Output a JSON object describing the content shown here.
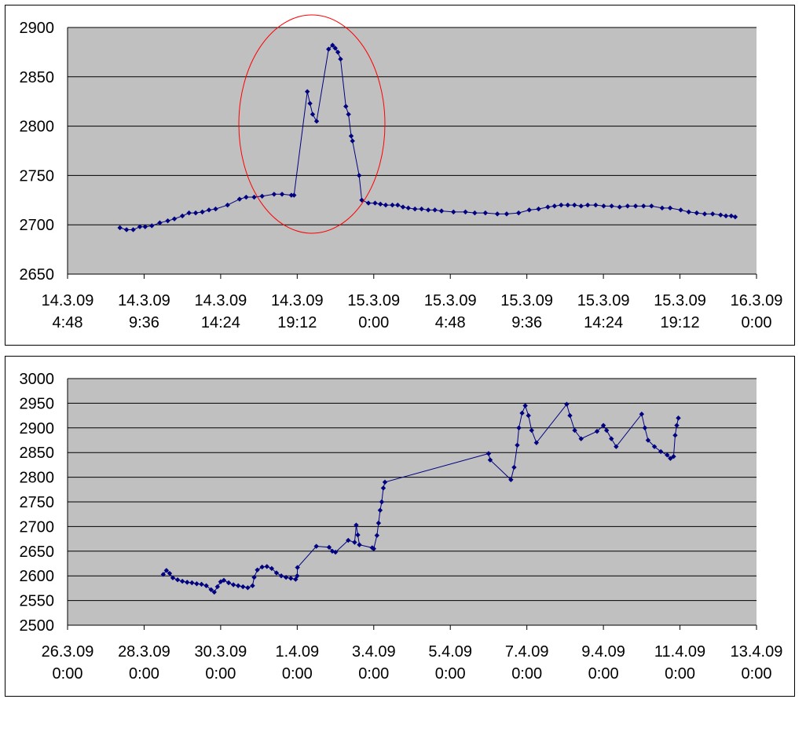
{
  "colors": {
    "plot_background": "#c0c0c0",
    "gridline": "#000000",
    "series_line": "#000080",
    "marker": "#000080",
    "annotation": "#ff0000"
  },
  "chart_data": [
    {
      "type": "line",
      "title": "",
      "xlabel": "",
      "ylabel": "",
      "y_range": [
        2650,
        2900
      ],
      "y_ticks": [
        "2900",
        "2850",
        "2800",
        "2750",
        "2700",
        "2650"
      ],
      "x_range": [
        "14.3.09 4:48",
        "16.3.09 0:00"
      ],
      "x_ticks": [
        {
          "date": "14.3.09",
          "time": "4:48"
        },
        {
          "date": "14.3.09",
          "time": "9:36"
        },
        {
          "date": "14.3.09",
          "time": "14:24"
        },
        {
          "date": "14.3.09",
          "time": "19:12"
        },
        {
          "date": "15.3.09",
          "time": "0:00"
        },
        {
          "date": "15.3.09",
          "time": "4:48"
        },
        {
          "date": "15.3.09",
          "time": "9:36"
        },
        {
          "date": "15.3.09",
          "time": "14:24"
        },
        {
          "date": "15.3.09",
          "time": "19:12"
        },
        {
          "date": "16.3.09",
          "time": "0:00"
        }
      ],
      "grid": "horizontal",
      "legend": "none",
      "annotation": "red ellipse around the peak between 14.3.09 16:30 and 14.3.09 22:00",
      "series": [
        {
          "markers": "diamond",
          "points": [
            [
              "14.3.09 8:05",
              2697
            ],
            [
              "14.3.09 8:30",
              2695
            ],
            [
              "14.3.09 8:55",
              2695
            ],
            [
              "14.3.09 9:20",
              2698
            ],
            [
              "14.3.09 9:40",
              2698
            ],
            [
              "14.3.09 10:05",
              2699
            ],
            [
              "14.3.09 10:35",
              2702
            ],
            [
              "14.3.09 11:05",
              2704
            ],
            [
              "14.3.09 11:30",
              2706
            ],
            [
              "14.3.09 12:00",
              2709
            ],
            [
              "14.3.09 12:25",
              2712
            ],
            [
              "14.3.09 12:50",
              2712
            ],
            [
              "14.3.09 13:15",
              2713
            ],
            [
              "14.3.09 13:40",
              2715
            ],
            [
              "14.3.09 14:05",
              2716
            ],
            [
              "14.3.09 14:50",
              2720
            ],
            [
              "14.3.09 15:35",
              2726
            ],
            [
              "14.3.09 16:00",
              2728
            ],
            [
              "14.3.09 16:30",
              2728
            ],
            [
              "14.3.09 17:00",
              2729
            ],
            [
              "14.3.09 17:45",
              2731
            ],
            [
              "14.3.09 18:15",
              2731
            ],
            [
              "14.3.09 18:50",
              2730
            ],
            [
              "14.3.09 19:00",
              2730
            ],
            [
              "14.3.09 19:50",
              2835
            ],
            [
              "14.3.09 20:00",
              2823
            ],
            [
              "14.3.09 20:10",
              2812
            ],
            [
              "14.3.09 20:25",
              2805
            ],
            [
              "14.3.09 21:10",
              2878
            ],
            [
              "14.3.09 21:25",
              2882
            ],
            [
              "14.3.09 21:35",
              2879
            ],
            [
              "14.3.09 21:45",
              2875
            ],
            [
              "14.3.09 21:55",
              2868
            ],
            [
              "14.3.09 22:15",
              2820
            ],
            [
              "14.3.09 22:25",
              2812
            ],
            [
              "14.3.09 22:35",
              2790
            ],
            [
              "14.3.09 22:40",
              2785
            ],
            [
              "14.3.09 23:05",
              2750
            ],
            [
              "14.3.09 23:15",
              2725
            ],
            [
              "14.3.09 23:40",
              2722
            ],
            [
              "15.3.09 0:05",
              2722
            ],
            [
              "15.3.09 0:25",
              2721
            ],
            [
              "15.3.09 0:45",
              2720
            ],
            [
              "15.3.09 1:10",
              2720
            ],
            [
              "15.3.09 1:30",
              2720
            ],
            [
              "15.3.09 1:50",
              2718
            ],
            [
              "15.3.09 2:10",
              2717
            ],
            [
              "15.3.09 2:35",
              2716
            ],
            [
              "15.3.09 3:00",
              2716
            ],
            [
              "15.3.09 3:25",
              2715
            ],
            [
              "15.3.09 3:50",
              2715
            ],
            [
              "15.3.09 4:15",
              2714
            ],
            [
              "15.3.09 5:00",
              2713
            ],
            [
              "15.3.09 5:45",
              2713
            ],
            [
              "15.3.09 6:20",
              2712
            ],
            [
              "15.3.09 7:00",
              2712
            ],
            [
              "15.3.09 7:45",
              2711
            ],
            [
              "15.3.09 8:20",
              2711
            ],
            [
              "15.3.09 9:05",
              2712
            ],
            [
              "15.3.09 9:45",
              2715
            ],
            [
              "15.3.09 10:20",
              2716
            ],
            [
              "15.3.09 10:55",
              2718
            ],
            [
              "15.3.09 11:20",
              2719
            ],
            [
              "15.3.09 11:45",
              2720
            ],
            [
              "15.3.09 12:10",
              2720
            ],
            [
              "15.3.09 12:35",
              2720
            ],
            [
              "15.3.09 13:00",
              2719
            ],
            [
              "15.3.09 13:25",
              2720
            ],
            [
              "15.3.09 13:55",
              2720
            ],
            [
              "15.3.09 14:25",
              2719
            ],
            [
              "15.3.09 14:55",
              2719
            ],
            [
              "15.3.09 15:25",
              2718
            ],
            [
              "15.3.09 15:55",
              2719
            ],
            [
              "15.3.09 16:25",
              2719
            ],
            [
              "15.3.09 16:55",
              2719
            ],
            [
              "15.3.09 17:25",
              2719
            ],
            [
              "15.3.09 18:05",
              2717
            ],
            [
              "15.3.09 18:35",
              2717
            ],
            [
              "15.3.09 19:15",
              2715
            ],
            [
              "15.3.09 19:45",
              2713
            ],
            [
              "15.3.09 20:15",
              2712
            ],
            [
              "15.3.09 20:45",
              2711
            ],
            [
              "15.3.09 21:15",
              2711
            ],
            [
              "15.3.09 21:45",
              2710
            ],
            [
              "15.3.09 22:05",
              2709
            ],
            [
              "15.3.09 22:25",
              2709
            ],
            [
              "15.3.09 22:40",
              2708
            ]
          ]
        }
      ]
    },
    {
      "type": "line",
      "title": "",
      "xlabel": "",
      "ylabel": "",
      "y_range": [
        2500,
        3000
      ],
      "y_ticks": [
        "3000",
        "2950",
        "2900",
        "2850",
        "2800",
        "2750",
        "2700",
        "2650",
        "2600",
        "2550",
        "2500"
      ],
      "x_range": [
        "26.3.09 0:00",
        "13.4.09 0:00"
      ],
      "x_ticks": [
        {
          "date": "26.3.09",
          "time": "0:00"
        },
        {
          "date": "28.3.09",
          "time": "0:00"
        },
        {
          "date": "30.3.09",
          "time": "0:00"
        },
        {
          "date": "1.4.09",
          "time": "0:00"
        },
        {
          "date": "3.4.09",
          "time": "0:00"
        },
        {
          "date": "5.4.09",
          "time": "0:00"
        },
        {
          "date": "7.4.09",
          "time": "0:00"
        },
        {
          "date": "9.4.09",
          "time": "0:00"
        },
        {
          "date": "11.4.09",
          "time": "0:00"
        },
        {
          "date": "13.4.09",
          "time": "0:00"
        }
      ],
      "grid": "horizontal",
      "legend": "none",
      "series": [
        {
          "markers": "diamond",
          "points": [
            [
              "28.3.09 12:00",
              2603
            ],
            [
              "28.3.09 14:00",
              2611
            ],
            [
              "28.3.09 16:00",
              2605
            ],
            [
              "28.3.09 18:00",
              2596
            ],
            [
              "28.3.09 21:00",
              2592
            ],
            [
              "29.3.09 0:00",
              2589
            ],
            [
              "29.3.09 3:00",
              2587
            ],
            [
              "29.3.09 6:00",
              2586
            ],
            [
              "29.3.09 9:00",
              2584
            ],
            [
              "29.3.09 12:00",
              2583
            ],
            [
              "29.3.09 15:00",
              2580
            ],
            [
              "29.3.09 18:00",
              2572
            ],
            [
              "29.3.09 20:00",
              2567
            ],
            [
              "29.3.09 22:00",
              2578
            ],
            [
              "30.3.09 0:00",
              2588
            ],
            [
              "30.3.09 2:00",
              2591
            ],
            [
              "30.3.09 5:00",
              2586
            ],
            [
              "30.3.09 8:00",
              2582
            ],
            [
              "30.3.09 11:00",
              2580
            ],
            [
              "30.3.09 14:00",
              2578
            ],
            [
              "30.3.09 17:00",
              2576
            ],
            [
              "30.3.09 20:00",
              2580
            ],
            [
              "30.3.09 21:00",
              2597
            ],
            [
              "30.3.09 23:00",
              2612
            ],
            [
              "31.3.09 2:00",
              2618
            ],
            [
              "31.3.09 5:00",
              2619
            ],
            [
              "31.3.09 8:00",
              2615
            ],
            [
              "31.3.09 11:00",
              2606
            ],
            [
              "31.3.09 14:00",
              2600
            ],
            [
              "31.3.09 17:00",
              2597
            ],
            [
              "31.3.09 20:00",
              2595
            ],
            [
              "31.3.09 23:00",
              2593
            ],
            [
              "1.4.09 0:00",
              2600
            ],
            [
              "1.4.09 0:10",
              2617
            ],
            [
              "1.4.09 12:00",
              2660
            ],
            [
              "1.4.09 20:00",
              2658
            ],
            [
              "1.4.09 22:00",
              2650
            ],
            [
              "2.4.09 0:00",
              2648
            ],
            [
              "2.4.09 8:00",
              2672
            ],
            [
              "2.4.09 12:00",
              2668
            ],
            [
              "2.4.09 13:00",
              2703
            ],
            [
              "2.4.09 14:00",
              2683
            ],
            [
              "2.4.09 15:00",
              2663
            ],
            [
              "2.4.09 23:00",
              2657
            ],
            [
              "3.4.09 0:00",
              2655
            ],
            [
              "3.4.09 2:00",
              2682
            ],
            [
              "3.4.09 3:00",
              2707
            ],
            [
              "3.4.09 4:00",
              2733
            ],
            [
              "3.4.09 5:00",
              2750
            ],
            [
              "3.4.09 6:00",
              2778
            ],
            [
              "3.4.09 7:00",
              2790
            ],
            [
              "6.4.09 0:00",
              2848
            ],
            [
              "6.4.09 1:00",
              2835
            ],
            [
              "6.4.09 14:00",
              2795
            ],
            [
              "6.4.09 16:00",
              2820
            ],
            [
              "6.4.09 18:00",
              2865
            ],
            [
              "6.4.09 19:00",
              2900
            ],
            [
              "6.4.09 21:00",
              2930
            ],
            [
              "6.4.09 23:00",
              2945
            ],
            [
              "7.4.09 1:00",
              2925
            ],
            [
              "7.4.09 3:00",
              2895
            ],
            [
              "7.4.09 6:00",
              2870
            ],
            [
              "8.4.09 1:00",
              2948
            ],
            [
              "8.4.09 3:00",
              2925
            ],
            [
              "8.4.09 6:00",
              2895
            ],
            [
              "8.4.09 10:00",
              2878
            ],
            [
              "8.4.09 20:00",
              2893
            ],
            [
              "9.4.09 0:00",
              2905
            ],
            [
              "9.4.09 2:00",
              2895
            ],
            [
              "9.4.09 5:00",
              2878
            ],
            [
              "9.4.09 8:00",
              2862
            ],
            [
              "10.4.09 0:00",
              2928
            ],
            [
              "10.4.09 2:00",
              2900
            ],
            [
              "10.4.09 4:00",
              2875
            ],
            [
              "10.4.09 8:00",
              2862
            ],
            [
              "10.4.09 12:00",
              2852
            ],
            [
              "10.4.09 16:00",
              2845
            ],
            [
              "10.4.09 18:00",
              2838
            ],
            [
              "10.4.09 20:00",
              2842
            ],
            [
              "10.4.09 21:00",
              2885
            ],
            [
              "10.4.09 22:00",
              2905
            ],
            [
              "10.4.09 23:00",
              2920
            ]
          ]
        }
      ]
    }
  ]
}
